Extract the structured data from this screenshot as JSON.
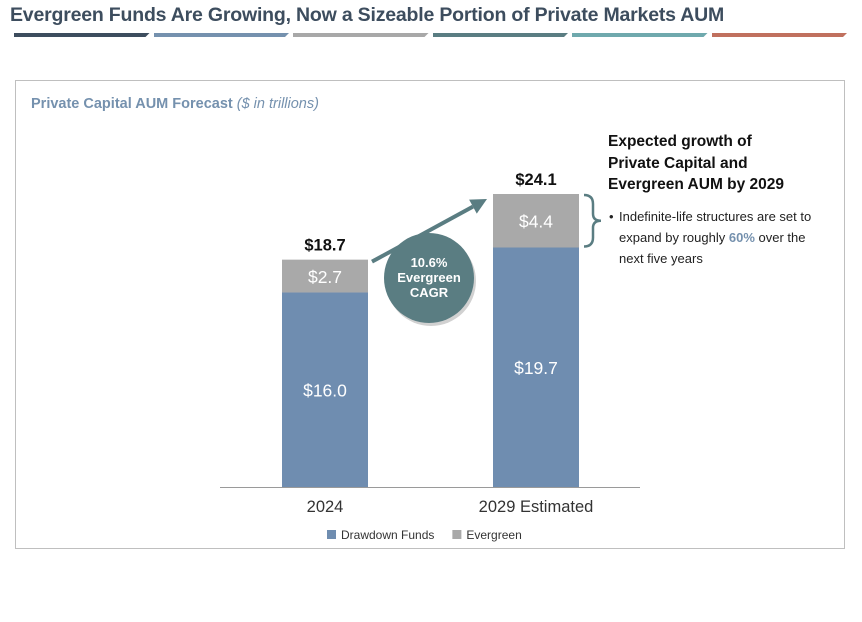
{
  "header": {
    "title": "Evergreen Funds Are Growing, Now a Sizeable Portion of Private Markets AUM",
    "rule_colors": [
      "#3d4d5e",
      "#7591ae",
      "#a8a8a8",
      "#5a7d82",
      "#6fa9ad",
      "#c0705e"
    ]
  },
  "panel": {
    "title": "Private Capital AUM Forecast",
    "subtitle": "($ in trillions)"
  },
  "chart_data": {
    "type": "bar",
    "stacked": true,
    "categories": [
      "2024",
      "2029 Estimated"
    ],
    "series": [
      {
        "name": "Drawdown Funds",
        "values": [
          16.0,
          19.7
        ],
        "labels": [
          "$16.0",
          "$19.7"
        ],
        "color": "#6f8db0"
      },
      {
        "name": "Evergreen",
        "values": [
          2.7,
          4.4
        ],
        "labels": [
          "$2.7",
          "$4.4"
        ],
        "color": "#a9a9a9"
      }
    ],
    "totals": [
      18.7,
      24.1
    ],
    "total_labels": [
      "$18.7",
      "$24.1"
    ],
    "ylim": [
      0,
      24.1
    ],
    "legend_position": "bottom",
    "grid": false,
    "cagr_badge": {
      "lines": [
        "10.6%",
        "Evergreen",
        "CAGR"
      ],
      "color": "#5a7d82"
    }
  },
  "annotation": {
    "heading_lines": [
      "Expected growth of",
      "Private Capital and",
      "Evergreen AUM by 2029"
    ],
    "bullet": "•",
    "bullet_text_before": "Indefinite-life structures are set to expand by roughly",
    "bullet_highlight": "60%",
    "bullet_text_after": "over the next five years"
  }
}
